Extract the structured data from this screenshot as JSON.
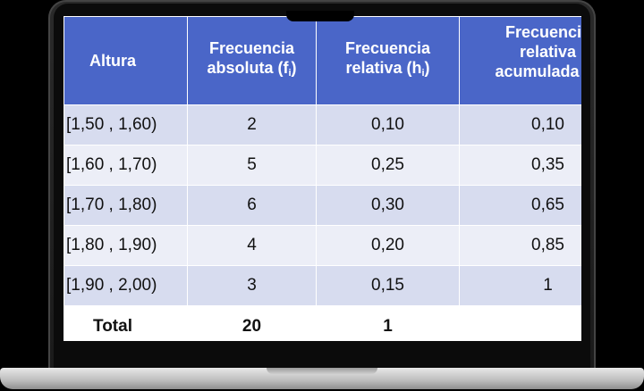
{
  "table": {
    "headers": {
      "altura": "Altura",
      "absoluta_line1": "Frecuencia",
      "absoluta_line2": "absoluta (f",
      "absoluta_sub": "i",
      "absoluta_close": ")",
      "relativa_line1": "Frecuencia",
      "relativa_line2": "relativa (h",
      "relativa_sub": "i",
      "relativa_close": ")",
      "acumulada_line1": "Frecuencia",
      "acumulada_line2": "relativa",
      "acumulada_line3": "acumulada (H"
    },
    "rows": [
      {
        "interval": "[1,50 , 1,60)",
        "fi": "2",
        "hi": "0,10",
        "Hi": "0,10"
      },
      {
        "interval": "[1,60 , 1,70)",
        "fi": "5",
        "hi": "0,25",
        "Hi": "0,35"
      },
      {
        "interval": "[1,70 , 1,80)",
        "fi": "6",
        "hi": "0,30",
        "Hi": "0,65"
      },
      {
        "interval": "[1,80 , 1,90)",
        "fi": "4",
        "hi": "0,20",
        "Hi": "0,85"
      },
      {
        "interval": "[1,90 , 2,00)",
        "fi": "3",
        "hi": "0,15",
        "Hi": "1"
      }
    ],
    "total": {
      "label": "Total",
      "fi": "20",
      "hi": "1",
      "Hi": ""
    }
  },
  "colors": {
    "header_bg": "#4a66c8",
    "row_dark": "#d7dcef",
    "row_light": "#eceef7"
  }
}
